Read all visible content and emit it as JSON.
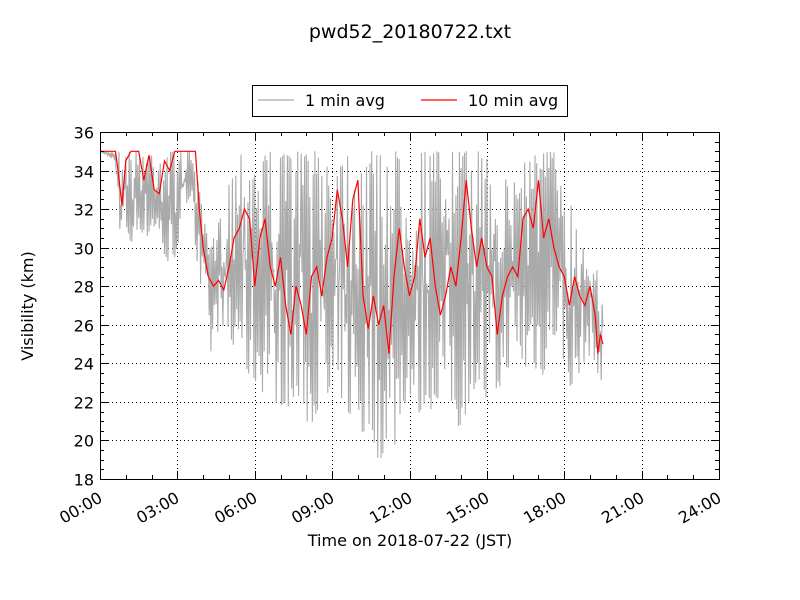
{
  "chart_data": {
    "type": "line",
    "title": "pwd52_20180722.txt",
    "xlabel": "Time on 2018-07-22 (JST)",
    "ylabel": "Visibility (km)",
    "xlim": [
      "00:00",
      "24:00"
    ],
    "ylim": [
      18,
      36
    ],
    "x_ticks": [
      "00:00",
      "03:00",
      "06:00",
      "09:00",
      "12:00",
      "15:00",
      "18:00",
      "21:00",
      "24:00"
    ],
    "y_ticks": [
      "18",
      "20",
      "22",
      "24",
      "26",
      "28",
      "30",
      "32",
      "34",
      "36"
    ],
    "grid": true,
    "legend_position": "top-center",
    "x_unit": "hours since 00:00",
    "series": [
      {
        "name": "1 min avg",
        "color": "#aaaaaa",
        "note": "high-frequency; plotted as min/max envelope of 1-min readings",
        "x": [
          0.0,
          0.6,
          0.7,
          0.8,
          0.9,
          1.2,
          1.5,
          1.8,
          2.1,
          2.4,
          2.7,
          3.0,
          3.3,
          3.6,
          3.7,
          3.9,
          4.1,
          4.3,
          4.5,
          4.8,
          5.0,
          5.2,
          5.4,
          5.7,
          6.0,
          6.3,
          6.6,
          6.9,
          7.2,
          7.5,
          7.8,
          8.1,
          8.4,
          8.7,
          9.0,
          9.3,
          9.6,
          9.9,
          10.2,
          10.5,
          10.8,
          11.1,
          11.4,
          11.7,
          12.0,
          12.3,
          12.6,
          12.9,
          13.2,
          13.5,
          13.8,
          14.1,
          14.4,
          14.7,
          15.0,
          15.3,
          15.6,
          15.9,
          16.2,
          16.5,
          16.8,
          17.1,
          17.4,
          17.7,
          18.0,
          18.3,
          18.6,
          18.9,
          19.2,
          19.5
        ],
        "y_min": [
          35.0,
          34.5,
          32.0,
          29.5,
          31.5,
          30.0,
          31.0,
          30.5,
          31.0,
          30.0,
          28.5,
          30.0,
          32.0,
          33.0,
          30.0,
          27.5,
          26.5,
          24.5,
          25.5,
          26.0,
          25.0,
          24.0,
          25.5,
          23.5,
          23.0,
          22.5,
          23.5,
          21.5,
          22.0,
          21.0,
          22.5,
          20.5,
          21.5,
          22.0,
          20.5,
          22.5,
          21.0,
          22.0,
          20.0,
          21.0,
          18.5,
          20.0,
          19.5,
          21.5,
          22.5,
          21.0,
          22.0,
          21.5,
          22.5,
          23.0,
          20.5,
          21.0,
          22.5,
          23.0,
          21.5,
          22.0,
          23.0,
          24.0,
          24.5,
          23.5,
          24.0,
          23.0,
          24.5,
          25.5,
          24.0,
          22.5,
          23.5,
          24.5,
          24.0,
          22.5
        ],
        "y_max": [
          35.0,
          35.0,
          35.0,
          35.0,
          35.0,
          35.0,
          35.0,
          35.0,
          35.0,
          35.0,
          35.0,
          35.0,
          35.0,
          35.0,
          35.0,
          32.5,
          31.0,
          30.0,
          31.0,
          32.0,
          33.5,
          34.0,
          35.0,
          35.0,
          35.0,
          35.0,
          35.0,
          34.5,
          35.0,
          35.0,
          35.0,
          35.0,
          35.0,
          35.0,
          35.0,
          35.0,
          35.0,
          35.0,
          35.0,
          35.0,
          35.0,
          35.0,
          35.0,
          35.0,
          35.0,
          35.0,
          35.0,
          35.0,
          35.0,
          35.0,
          35.0,
          35.0,
          35.0,
          35.0,
          35.0,
          35.0,
          34.0,
          33.0,
          34.0,
          35.0,
          35.0,
          35.0,
          35.0,
          35.0,
          34.0,
          32.0,
          30.5,
          30.0,
          29.5,
          29.0
        ]
      },
      {
        "name": "10 min avg",
        "color": "#ff0000",
        "x": [
          0.0,
          0.3,
          0.6,
          0.7,
          0.85,
          1.0,
          1.2,
          1.5,
          1.7,
          1.9,
          2.1,
          2.3,
          2.5,
          2.7,
          2.9,
          3.1,
          3.4,
          3.7,
          3.85,
          4.0,
          4.2,
          4.4,
          4.6,
          4.8,
          5.0,
          5.2,
          5.4,
          5.6,
          5.8,
          6.0,
          6.2,
          6.4,
          6.6,
          6.8,
          7.0,
          7.2,
          7.4,
          7.6,
          7.8,
          8.0,
          8.2,
          8.4,
          8.6,
          8.8,
          9.0,
          9.2,
          9.4,
          9.6,
          9.8,
          10.0,
          10.2,
          10.4,
          10.6,
          10.8,
          11.0,
          11.2,
          11.4,
          11.6,
          11.8,
          12.0,
          12.2,
          12.4,
          12.6,
          12.8,
          13.0,
          13.2,
          13.4,
          13.6,
          13.8,
          14.0,
          14.2,
          14.4,
          14.6,
          14.8,
          15.0,
          15.2,
          15.4,
          15.6,
          15.8,
          16.0,
          16.2,
          16.4,
          16.6,
          16.8,
          17.0,
          17.2,
          17.4,
          17.6,
          17.8,
          18.0,
          18.2,
          18.4,
          18.6,
          18.8,
          19.0,
          19.2,
          19.3,
          19.4,
          19.5
        ],
        "y": [
          35.0,
          35.0,
          35.0,
          34.0,
          32.2,
          34.5,
          35.0,
          35.0,
          33.5,
          34.8,
          33.0,
          32.8,
          34.5,
          34.0,
          35.0,
          35.0,
          35.0,
          35.0,
          32.0,
          30.0,
          28.5,
          28.0,
          28.3,
          27.8,
          29.0,
          30.5,
          31.0,
          32.0,
          31.5,
          28.0,
          30.5,
          31.5,
          29.0,
          28.0,
          29.5,
          27.0,
          25.5,
          28.0,
          27.0,
          25.5,
          28.5,
          29.0,
          27.5,
          29.5,
          30.5,
          33.0,
          31.5,
          29.0,
          32.5,
          33.5,
          27.5,
          25.8,
          27.5,
          26.0,
          27.0,
          24.5,
          28.5,
          31.0,
          29.0,
          27.5,
          28.5,
          31.5,
          29.5,
          30.5,
          28.0,
          26.5,
          27.5,
          29.0,
          28.0,
          30.5,
          33.5,
          31.0,
          29.0,
          30.5,
          29.0,
          28.5,
          25.5,
          27.5,
          28.5,
          29.0,
          28.5,
          31.5,
          32.0,
          31.0,
          33.5,
          30.5,
          31.5,
          30.0,
          29.0,
          28.5,
          27.0,
          28.5,
          27.5,
          27.0,
          28.0,
          26.5,
          24.5,
          25.5,
          25.0
        ]
      }
    ]
  },
  "legend": {
    "entries": [
      "1 min avg",
      "10 min avg"
    ]
  }
}
